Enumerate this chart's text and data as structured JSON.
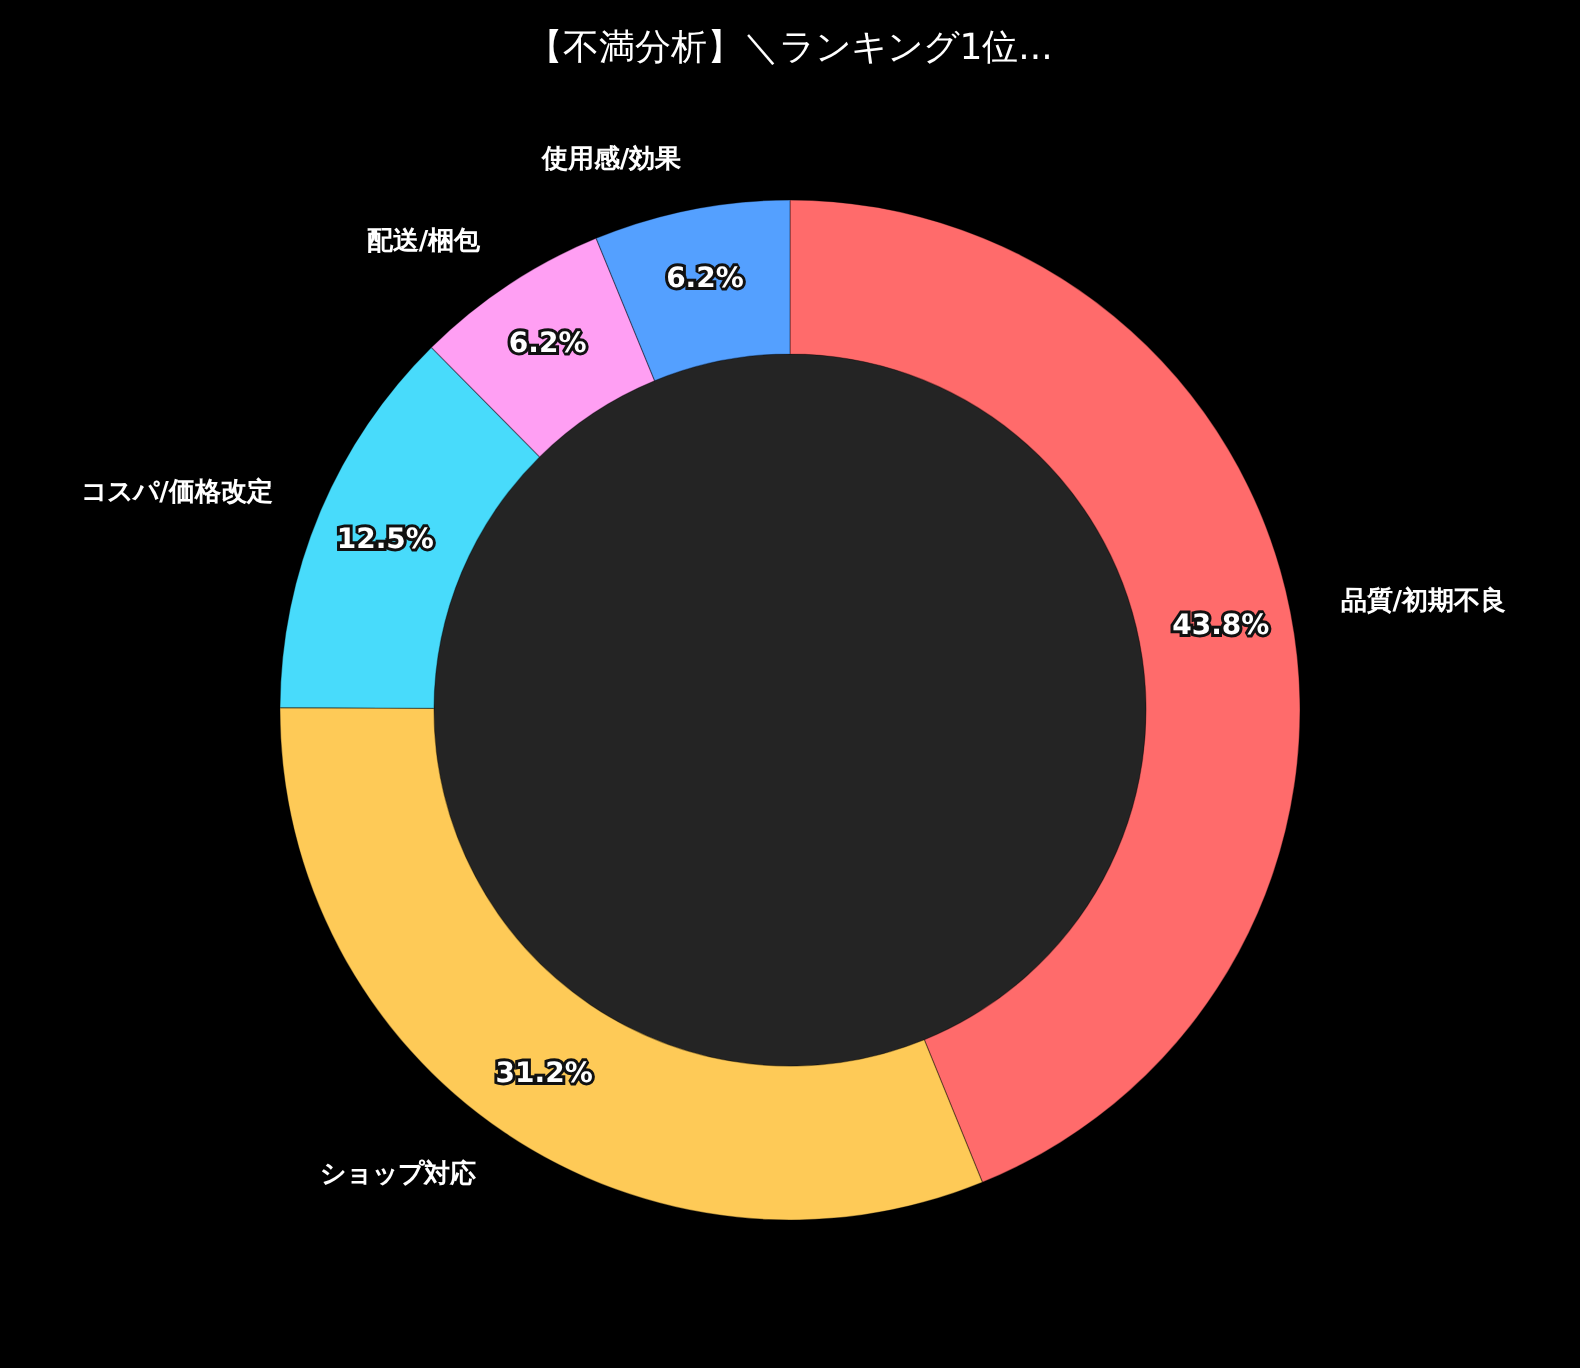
{
  "chart_data": {
    "type": "donut",
    "title": "【不満分析】＼ランキング1位...",
    "categories": [
      "品質/初期不良",
      "ショップ対応",
      "コスパ/価格改定",
      "配送/梱包",
      "使用感/効果"
    ],
    "values": [
      43.8,
      31.2,
      12.5,
      6.2,
      6.2
    ],
    "colors": [
      "#ff6b6b",
      "#feca57",
      "#48dbfb",
      "#ff9ff3",
      "#54a0ff"
    ],
    "value_labels": [
      "43.8%",
      "31.2%",
      "12.5%",
      "6.2%",
      "6.2%"
    ]
  }
}
